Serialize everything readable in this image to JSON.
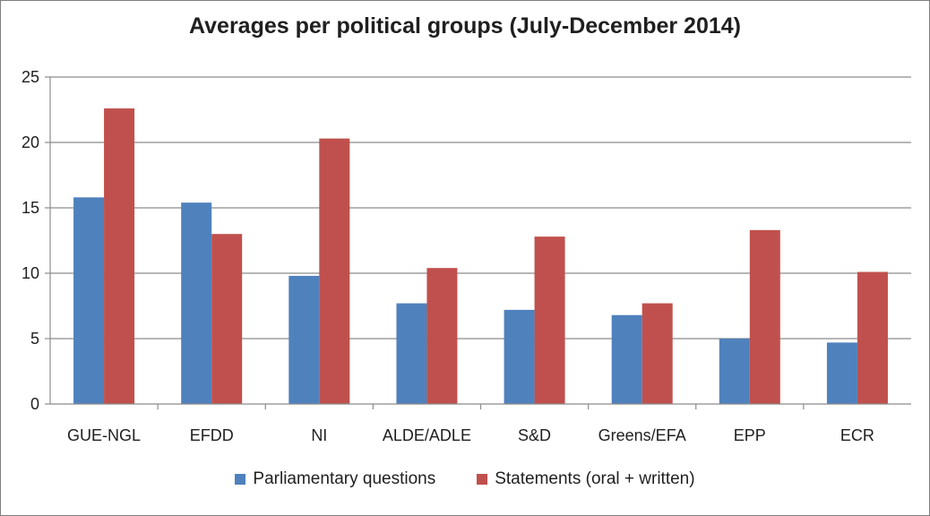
{
  "chart_data": {
    "type": "bar",
    "title": "Averages per political groups (July-December 2014)",
    "xlabel": "",
    "ylabel": "",
    "ylim": [
      0,
      25
    ],
    "yticks": [
      0,
      5,
      10,
      15,
      20,
      25
    ],
    "grid": true,
    "legend_position": "bottom",
    "categories": [
      "GUE-NGL",
      "EFDD",
      "NI",
      "ALDE/ADLE",
      "S&D",
      "Greens/EFA",
      "EPP",
      "ECR"
    ],
    "series": [
      {
        "name": "Parliamentary questions",
        "color": "#4f81bd",
        "values": [
          15.8,
          15.4,
          9.8,
          7.7,
          7.2,
          6.8,
          5.0,
          4.7
        ]
      },
      {
        "name": "Statements (oral + written)",
        "color": "#c0504d",
        "values": [
          22.6,
          13.0,
          20.3,
          10.4,
          12.8,
          7.7,
          13.3,
          10.1
        ]
      }
    ]
  }
}
